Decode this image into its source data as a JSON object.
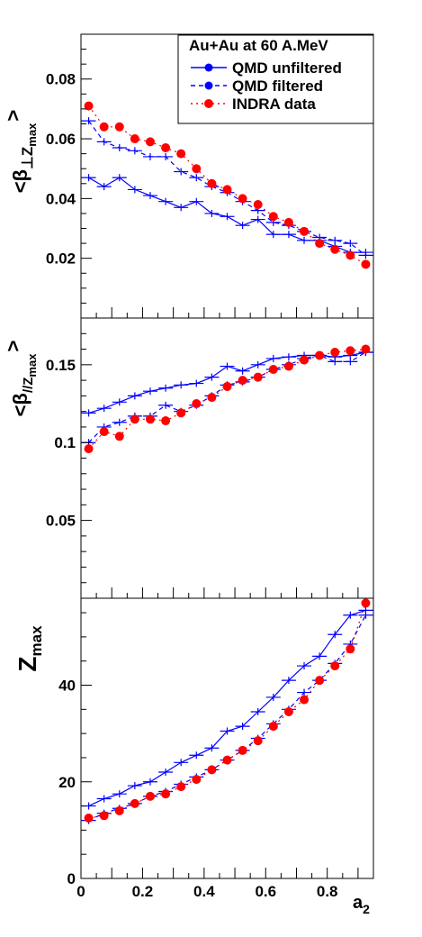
{
  "colors": {
    "qmd": "#0000ff",
    "indra": "#ff0000",
    "axis": "#000000"
  },
  "legend": {
    "title": "Au+Au at 60 A.MeV",
    "entries": [
      "QMD unfiltered",
      "QMD filtered",
      "INDRA data"
    ]
  },
  "x_axis": {
    "label": "a",
    "label_sub": "2",
    "ticks": [
      "0",
      "0.2",
      "0.4",
      "0.6",
      "0.8"
    ]
  },
  "panels": [
    {
      "id": "perp",
      "ylabel_main": "<β",
      "ylabel_sub": "⊥Z",
      "ylabel_subsub": "max",
      "ylabel_end": ">",
      "ticks": [
        "0.02",
        "0.04",
        "0.06",
        "0.08"
      ]
    },
    {
      "id": "par",
      "ylabel_main": "<β",
      "ylabel_sub": "//Z",
      "ylabel_subsub": "max",
      "ylabel_end": ">",
      "ticks": [
        "0.05",
        "0.1",
        "0.15"
      ]
    },
    {
      "id": "zmax",
      "ylabel_main": "Z",
      "ylabel_sub": "max",
      "ticks": [
        "0",
        "20",
        "40"
      ]
    }
  ],
  "chart_data": [
    {
      "type": "line",
      "ylabel": "<β⊥Zmax>",
      "xlim": [
        0,
        0.95
      ],
      "ylim": [
        0,
        0.095
      ],
      "x": [
        0.025,
        0.075,
        0.125,
        0.175,
        0.225,
        0.275,
        0.325,
        0.375,
        0.425,
        0.475,
        0.525,
        0.575,
        0.625,
        0.675,
        0.725,
        0.775,
        0.825,
        0.875,
        0.925
      ],
      "series": [
        {
          "name": "QMD unfiltered",
          "values": [
            0.047,
            0.044,
            0.047,
            0.043,
            0.041,
            0.039,
            0.037,
            0.039,
            0.035,
            0.034,
            0.031,
            0.033,
            0.028,
            0.028,
            0.026,
            0.026,
            0.024,
            0.022,
            0.022
          ]
        },
        {
          "name": "QMD filtered",
          "values": [
            0.066,
            0.059,
            0.057,
            0.056,
            0.054,
            0.054,
            0.049,
            0.047,
            0.044,
            0.042,
            0.039,
            0.036,
            0.032,
            0.031,
            0.029,
            0.027,
            0.026,
            0.025,
            0.021
          ]
        },
        {
          "name": "INDRA data",
          "values": [
            0.071,
            0.064,
            0.064,
            0.06,
            0.059,
            0.057,
            0.055,
            0.05,
            0.045,
            0.043,
            0.04,
            0.038,
            0.034,
            0.032,
            0.029,
            0.025,
            0.023,
            0.021,
            0.018
          ]
        }
      ]
    },
    {
      "type": "line",
      "ylabel": "<β//Zmax>",
      "xlim": [
        0,
        0.95
      ],
      "ylim": [
        0,
        0.18
      ],
      "x": [
        0.025,
        0.075,
        0.125,
        0.175,
        0.225,
        0.275,
        0.325,
        0.375,
        0.425,
        0.475,
        0.525,
        0.575,
        0.625,
        0.675,
        0.725,
        0.775,
        0.825,
        0.875,
        0.925
      ],
      "series": [
        {
          "name": "QMD unfiltered",
          "values": [
            0.119,
            0.122,
            0.126,
            0.13,
            0.133,
            0.135,
            0.137,
            0.138,
            0.142,
            0.149,
            0.146,
            0.15,
            0.154,
            0.155,
            0.156,
            0.156,
            0.155,
            0.156,
            0.158
          ]
        },
        {
          "name": "QMD filtered",
          "values": [
            0.1,
            0.11,
            0.113,
            0.117,
            0.117,
            0.124,
            0.12,
            0.124,
            0.13,
            0.137,
            0.139,
            0.142,
            0.147,
            0.15,
            0.154,
            0.156,
            0.152,
            0.152,
            0.158
          ]
        },
        {
          "name": "INDRA data",
          "values": [
            0.096,
            0.107,
            0.104,
            0.115,
            0.115,
            0.114,
            0.119,
            0.125,
            0.129,
            0.136,
            0.14,
            0.142,
            0.147,
            0.149,
            0.153,
            0.156,
            0.158,
            0.159,
            0.16
          ]
        }
      ]
    },
    {
      "type": "line",
      "ylabel": "Zmax",
      "xlim": [
        0,
        0.95
      ],
      "ylim": [
        0,
        58
      ],
      "x": [
        0.025,
        0.075,
        0.125,
        0.175,
        0.225,
        0.275,
        0.325,
        0.375,
        0.425,
        0.475,
        0.525,
        0.575,
        0.625,
        0.675,
        0.725,
        0.775,
        0.825,
        0.875,
        0.925
      ],
      "series": [
        {
          "name": "QMD unfiltered",
          "values": [
            15.0,
            16.5,
            17.5,
            19.2,
            20.0,
            22.0,
            24.0,
            25.5,
            27.0,
            30.5,
            31.5,
            34.5,
            37.5,
            41.0,
            44.0,
            46.0,
            50.5,
            54.5,
            55.5
          ]
        },
        {
          "name": "QMD filtered",
          "values": [
            12.0,
            13.5,
            14.5,
            15.5,
            17.0,
            18.0,
            19.5,
            21.0,
            22.5,
            24.5,
            26.5,
            29.0,
            32.0,
            35.0,
            38.5,
            41.0,
            44.5,
            48.5,
            54.5
          ]
        },
        {
          "name": "INDRA data",
          "values": [
            12.5,
            13.0,
            14.0,
            15.5,
            17.0,
            17.5,
            19.0,
            20.5,
            22.5,
            24.5,
            26.5,
            28.5,
            31.5,
            34.5,
            37.0,
            41.0,
            44.0,
            47.5,
            57.0
          ]
        }
      ]
    }
  ]
}
